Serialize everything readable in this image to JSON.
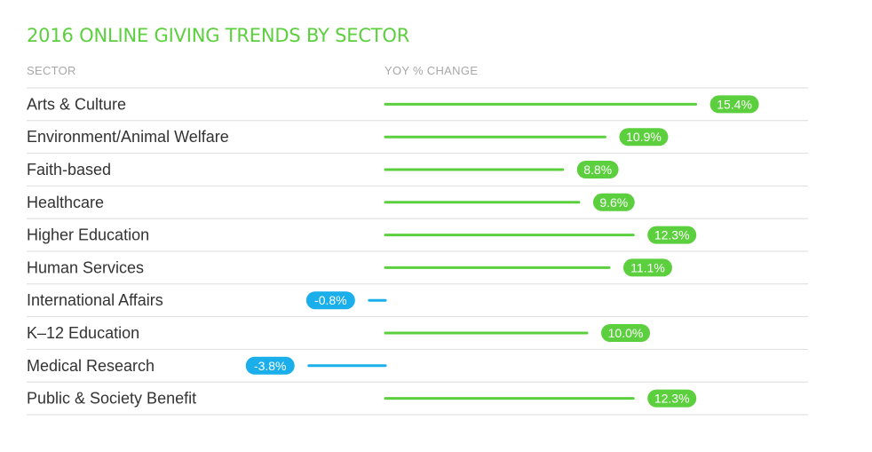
{
  "colors": {
    "title": "#5ccf3e",
    "positive": "#5ccf3e",
    "negative": "#1aaeea",
    "divider": "#dedede",
    "label": "#333333",
    "header": "#a8a8a8"
  },
  "headers": {
    "sector": "SECTOR",
    "change": "YOY % CHANGE"
  },
  "chart_data": {
    "type": "bar",
    "orientation": "horizontal",
    "title": "2016 ONLINE GIVING TRENDS BY SECTOR",
    "xlabel": "",
    "ylabel": "",
    "grid": false,
    "categories": [
      "Arts & Culture",
      "Environment/Animal Welfare",
      "Faith-based",
      "Healthcare",
      "Higher Education",
      "Human Services",
      "International Affairs",
      "K–12 Education",
      "Medical Research",
      "Public & Society Benefit"
    ],
    "values": [
      15.4,
      10.9,
      8.8,
      9.6,
      12.3,
      11.1,
      -0.8,
      10.0,
      -3.8,
      12.3
    ],
    "value_labels": [
      "15.4%",
      "10.9%",
      "8.8%",
      "9.6%",
      "12.3%",
      "11.1%",
      "-0.8%",
      "10.0%",
      "-3.8%",
      "12.3%"
    ]
  }
}
